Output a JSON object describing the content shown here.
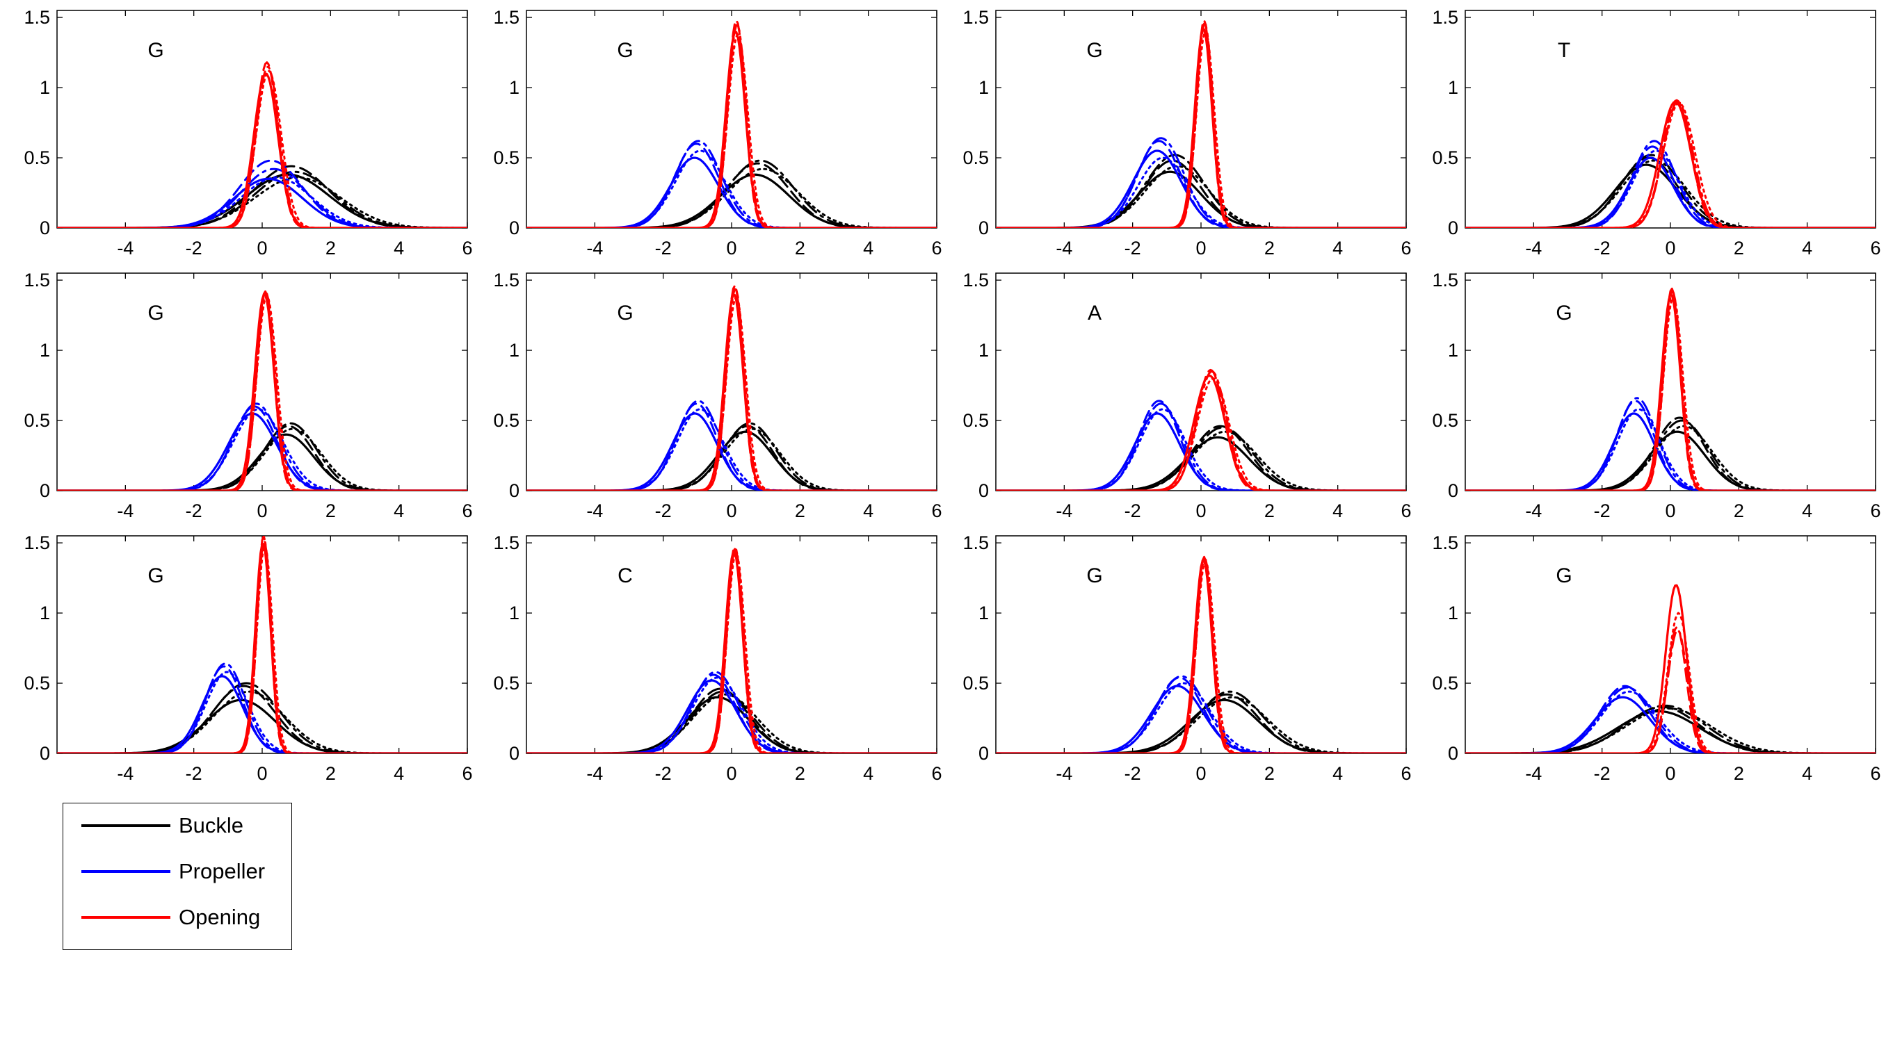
{
  "colors": {
    "buckle": "#000000",
    "propeller": "#0000ff",
    "opening": "#ff0000"
  },
  "legend": {
    "items": [
      {
        "label": "Buckle",
        "color": "#000000"
      },
      {
        "label": "Propeller",
        "color": "#0000ff"
      },
      {
        "label": "Opening",
        "color": "#ff0000"
      }
    ]
  },
  "chart_data": [
    {
      "type": "line",
      "title": "G",
      "xlim": [
        -6,
        6
      ],
      "ylim": [
        0,
        1.55
      ],
      "xticks": [
        -4,
        -2,
        0,
        2,
        4,
        6
      ],
      "yticks": [
        0,
        0.5,
        1,
        1.5
      ],
      "series": [
        {
          "name": "Buckle",
          "mu": 0.9,
          "sigma": 1.2,
          "peaks": [
            0.38,
            0.44,
            0.4,
            0.36
          ]
        },
        {
          "name": "Propeller",
          "mu": 0.3,
          "sigma": 1.0,
          "peaks": [
            0.35,
            0.48,
            0.42,
            0.36
          ]
        },
        {
          "name": "Opening",
          "mu": 0.15,
          "sigma": 0.35,
          "peaks": [
            1.1,
            1.18,
            1.15,
            1.12
          ]
        }
      ]
    },
    {
      "type": "line",
      "title": "G",
      "xlim": [
        -6,
        6
      ],
      "ylim": [
        0,
        1.55
      ],
      "xticks": [
        -4,
        -2,
        0,
        2,
        4,
        6
      ],
      "yticks": [
        0,
        0.5,
        1,
        1.5
      ],
      "series": [
        {
          "name": "Buckle",
          "mu": 0.8,
          "sigma": 1.0,
          "peaks": [
            0.38,
            0.46,
            0.48,
            0.42
          ]
        },
        {
          "name": "Propeller",
          "mu": -1.0,
          "sigma": 0.7,
          "peaks": [
            0.5,
            0.6,
            0.62,
            0.55
          ]
        },
        {
          "name": "Opening",
          "mu": 0.15,
          "sigma": 0.28,
          "peaks": [
            1.4,
            1.48,
            1.45,
            1.38
          ]
        }
      ]
    },
    {
      "type": "line",
      "title": "G",
      "xlim": [
        -6,
        6
      ],
      "ylim": [
        0,
        1.55
      ],
      "xticks": [
        -4,
        -2,
        0,
        2,
        4,
        6
      ],
      "yticks": [
        0,
        0.5,
        1,
        1.5
      ],
      "series": [
        {
          "name": "Buckle",
          "mu": -0.8,
          "sigma": 0.9,
          "peaks": [
            0.4,
            0.48,
            0.52,
            0.44
          ]
        },
        {
          "name": "Propeller",
          "mu": -1.2,
          "sigma": 0.7,
          "peaks": [
            0.55,
            0.62,
            0.64,
            0.5
          ]
        },
        {
          "name": "Opening",
          "mu": 0.1,
          "sigma": 0.25,
          "peaks": [
            1.42,
            1.48,
            1.46,
            1.4
          ]
        }
      ]
    },
    {
      "type": "line",
      "title": "T",
      "xlim": [
        -6,
        6
      ],
      "ylim": [
        0,
        1.55
      ],
      "xticks": [
        -4,
        -2,
        0,
        2,
        4,
        6
      ],
      "yticks": [
        0,
        0.5,
        1,
        1.5
      ],
      "series": [
        {
          "name": "Buckle",
          "mu": -0.6,
          "sigma": 0.9,
          "peaks": [
            0.45,
            0.5,
            0.52,
            0.48
          ]
        },
        {
          "name": "Propeller",
          "mu": -0.5,
          "sigma": 0.65,
          "peaks": [
            0.5,
            0.58,
            0.62,
            0.55
          ]
        },
        {
          "name": "Opening",
          "mu": 0.2,
          "sigma": 0.45,
          "peaks": [
            0.9,
            0.91,
            0.9,
            0.89
          ]
        }
      ]
    },
    {
      "type": "line",
      "title": "G",
      "xlim": [
        -6,
        6
      ],
      "ylim": [
        0,
        1.55
      ],
      "xticks": [
        -4,
        -2,
        0,
        2,
        4,
        6
      ],
      "yticks": [
        0,
        0.5,
        1,
        1.5
      ],
      "series": [
        {
          "name": "Buckle",
          "mu": 0.8,
          "sigma": 0.8,
          "peaks": [
            0.4,
            0.46,
            0.48,
            0.44
          ]
        },
        {
          "name": "Propeller",
          "mu": -0.2,
          "sigma": 0.7,
          "peaks": [
            0.55,
            0.6,
            0.62,
            0.58
          ]
        },
        {
          "name": "Opening",
          "mu": 0.1,
          "sigma": 0.28,
          "peaks": [
            1.4,
            1.42,
            1.41,
            1.39
          ]
        }
      ]
    },
    {
      "type": "line",
      "title": "G",
      "xlim": [
        -6,
        6
      ],
      "ylim": [
        0,
        1.55
      ],
      "xticks": [
        -4,
        -2,
        0,
        2,
        4,
        6
      ],
      "yticks": [
        0,
        0.5,
        1,
        1.5
      ],
      "series": [
        {
          "name": "Buckle",
          "mu": 0.5,
          "sigma": 0.8,
          "peaks": [
            0.42,
            0.46,
            0.48,
            0.44
          ]
        },
        {
          "name": "Propeller",
          "mu": -1.0,
          "sigma": 0.65,
          "peaks": [
            0.55,
            0.62,
            0.64,
            0.58
          ]
        },
        {
          "name": "Opening",
          "mu": 0.1,
          "sigma": 0.27,
          "peaks": [
            1.4,
            1.46,
            1.44,
            1.38
          ]
        }
      ]
    },
    {
      "type": "line",
      "title": "A",
      "xlim": [
        -6,
        6
      ],
      "ylim": [
        0,
        1.55
      ],
      "xticks": [
        -4,
        -2,
        0,
        2,
        4,
        6
      ],
      "yticks": [
        0,
        0.5,
        1,
        1.5
      ],
      "series": [
        {
          "name": "Buckle",
          "mu": 0.6,
          "sigma": 0.9,
          "peaks": [
            0.38,
            0.46,
            0.45,
            0.42
          ]
        },
        {
          "name": "Propeller",
          "mu": -1.2,
          "sigma": 0.65,
          "peaks": [
            0.55,
            0.64,
            0.62,
            0.58
          ]
        },
        {
          "name": "Opening",
          "mu": 0.3,
          "sigma": 0.45,
          "peaks": [
            0.82,
            0.86,
            0.85,
            0.8
          ]
        }
      ]
    },
    {
      "type": "line",
      "title": "G",
      "xlim": [
        -6,
        6
      ],
      "ylim": [
        0,
        1.55
      ],
      "xticks": [
        -4,
        -2,
        0,
        2,
        4,
        6
      ],
      "yticks": [
        0,
        0.5,
        1,
        1.5
      ],
      "series": [
        {
          "name": "Buckle",
          "mu": 0.3,
          "sigma": 0.8,
          "peaks": [
            0.42,
            0.52,
            0.5,
            0.46
          ]
        },
        {
          "name": "Propeller",
          "mu": -1.0,
          "sigma": 0.6,
          "peaks": [
            0.55,
            0.64,
            0.66,
            0.58
          ]
        },
        {
          "name": "Opening",
          "mu": 0.05,
          "sigma": 0.27,
          "peaks": [
            1.4,
            1.44,
            1.42,
            1.38
          ]
        }
      ]
    },
    {
      "type": "line",
      "title": "G",
      "xlim": [
        -6,
        6
      ],
      "ylim": [
        0,
        1.55
      ],
      "xticks": [
        -4,
        -2,
        0,
        2,
        4,
        6
      ],
      "yticks": [
        0,
        0.5,
        1,
        1.5
      ],
      "series": [
        {
          "name": "Buckle",
          "mu": -0.5,
          "sigma": 1.0,
          "peaks": [
            0.38,
            0.48,
            0.5,
            0.44
          ]
        },
        {
          "name": "Propeller",
          "mu": -1.1,
          "sigma": 0.6,
          "peaks": [
            0.55,
            0.62,
            0.64,
            0.58
          ]
        },
        {
          "name": "Opening",
          "mu": 0.05,
          "sigma": 0.22,
          "peaks": [
            1.5,
            1.55,
            1.52,
            1.48
          ]
        }
      ]
    },
    {
      "type": "line",
      "title": "C",
      "xlim": [
        -6,
        6
      ],
      "ylim": [
        0,
        1.55
      ],
      "xticks": [
        -4,
        -2,
        0,
        2,
        4,
        6
      ],
      "yticks": [
        0,
        0.5,
        1,
        1.5
      ],
      "series": [
        {
          "name": "Buckle",
          "mu": -0.3,
          "sigma": 0.9,
          "peaks": [
            0.4,
            0.46,
            0.44,
            0.42
          ]
        },
        {
          "name": "Propeller",
          "mu": -0.5,
          "sigma": 0.7,
          "peaks": [
            0.52,
            0.56,
            0.58,
            0.54
          ]
        },
        {
          "name": "Opening",
          "mu": 0.1,
          "sigma": 0.25,
          "peaks": [
            1.44,
            1.47,
            1.46,
            1.43
          ]
        }
      ]
    },
    {
      "type": "line",
      "title": "G",
      "xlim": [
        -6,
        6
      ],
      "ylim": [
        0,
        1.55
      ],
      "xticks": [
        -4,
        -2,
        0,
        2,
        4,
        6
      ],
      "yticks": [
        0,
        0.5,
        1,
        1.5
      ],
      "series": [
        {
          "name": "Buckle",
          "mu": 0.8,
          "sigma": 1.0,
          "peaks": [
            0.38,
            0.42,
            0.44,
            0.4
          ]
        },
        {
          "name": "Propeller",
          "mu": -0.6,
          "sigma": 0.75,
          "peaks": [
            0.48,
            0.54,
            0.55,
            0.5
          ]
        },
        {
          "name": "Opening",
          "mu": 0.1,
          "sigma": 0.25,
          "peaks": [
            1.38,
            1.4,
            1.39,
            1.37
          ]
        }
      ]
    },
    {
      "type": "line",
      "title": "G",
      "xlim": [
        -6,
        6
      ],
      "ylim": [
        0,
        1.55
      ],
      "xticks": [
        -4,
        -2,
        0,
        2,
        4,
        6
      ],
      "yticks": [
        0,
        0.5,
        1,
        1.5
      ],
      "series": [
        {
          "name": "Buckle",
          "mu": -0.2,
          "sigma": 1.2,
          "peaks": [
            0.3,
            0.33,
            0.34,
            0.32
          ]
        },
        {
          "name": "Propeller",
          "mu": -1.3,
          "sigma": 0.8,
          "peaks": [
            0.4,
            0.48,
            0.47,
            0.44
          ]
        },
        {
          "name": "Opening",
          "mu": 0.2,
          "sigma": 0.3,
          "peaks": [
            1.2,
            0.9,
            0.88,
            1.0
          ]
        }
      ]
    }
  ]
}
